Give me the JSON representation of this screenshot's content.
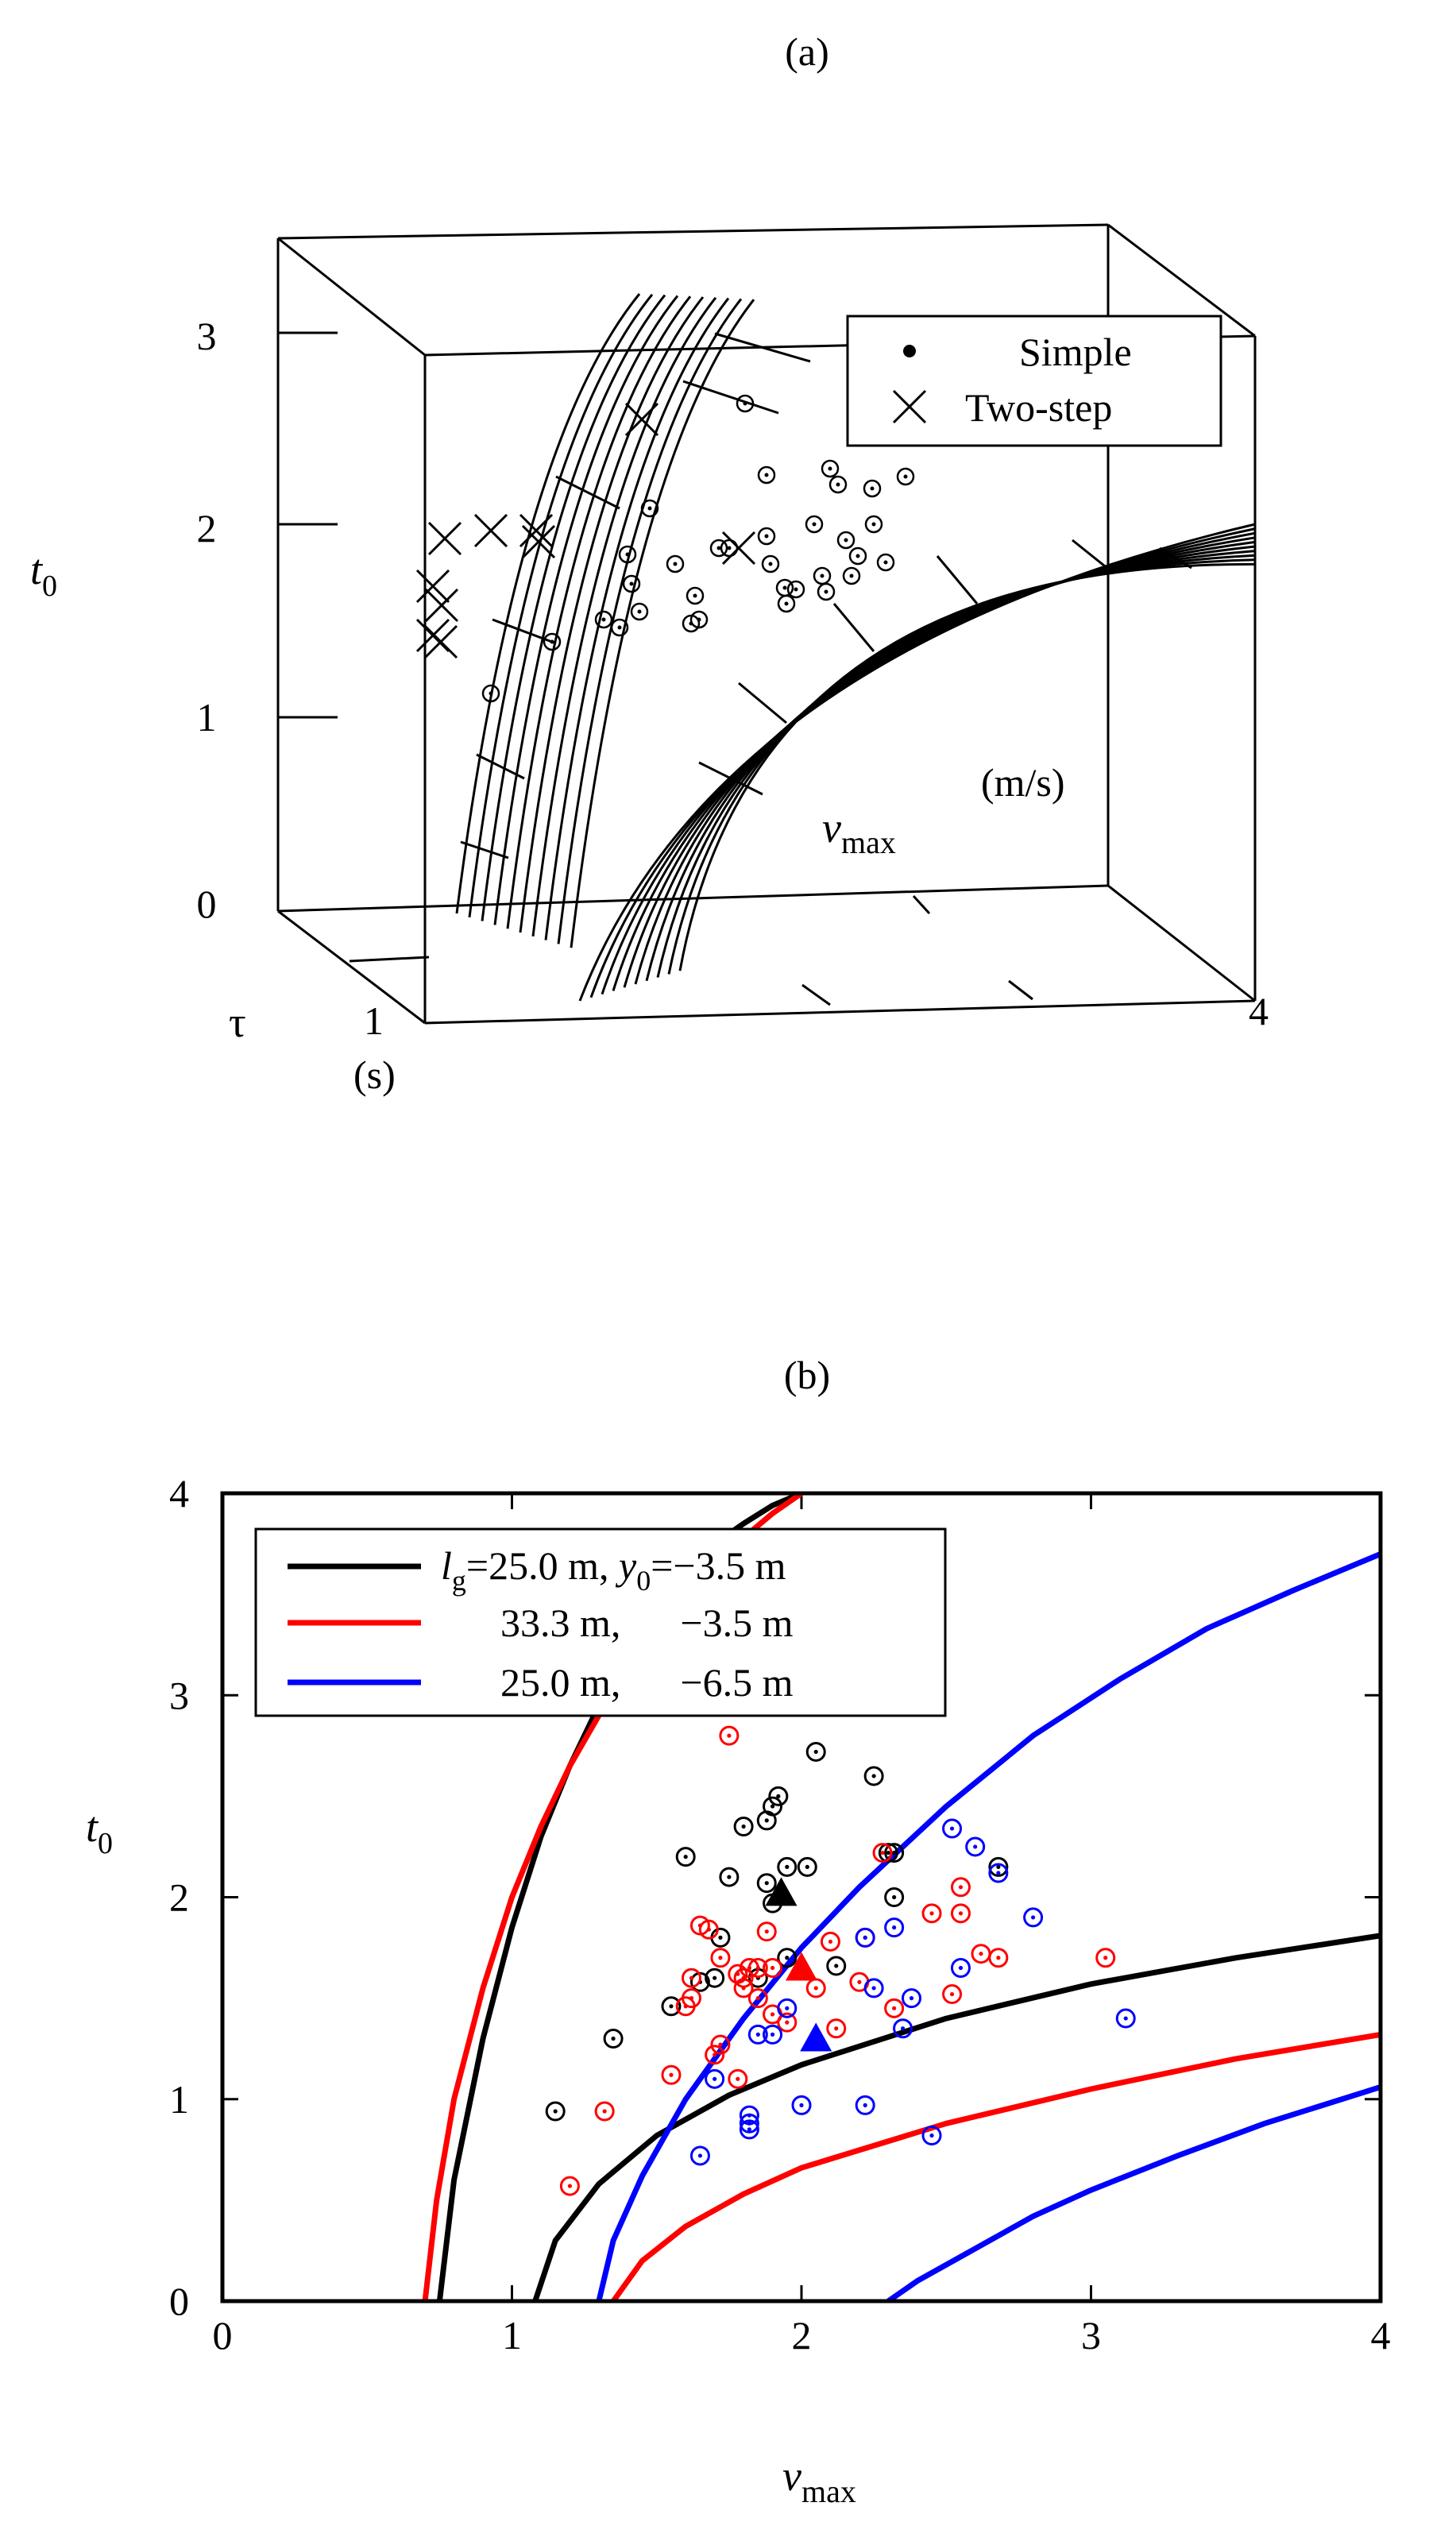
{
  "figure": {
    "panel_a_label": "(a)",
    "panel_b_label": "(b)"
  },
  "chart_data": [
    {
      "type": "scatter-3d",
      "panel": "(a)",
      "zlabel": "t",
      "zlabel_sub": "0",
      "z_ticks": [
        "0",
        "1",
        "2",
        "3"
      ],
      "tau_label": "τ",
      "tau_tick": "1",
      "tau_unit": "(s)",
      "vmax_label": "v",
      "vmax_label_sub": "max",
      "vmax_unit": "(m/s)",
      "vmax_tick": "4",
      "legend": {
        "simple": "Simple",
        "two_step": "Two-step"
      },
      "two_step_count": 10,
      "simple_count": 33,
      "surfaces": 2
    },
    {
      "type": "line+scatter",
      "panel": "(b)",
      "xlabel": "v",
      "xlabel_sub": "max",
      "ylabel": "t",
      "ylabel_sub": "0",
      "xlim": [
        0,
        4
      ],
      "ylim": [
        0,
        4
      ],
      "x_ticks": [
        "0",
        "1",
        "2",
        "3",
        "4"
      ],
      "y_ticks": [
        "0",
        "1",
        "2",
        "3",
        "4"
      ],
      "legend_entries": [
        {
          "color": "#000000",
          "l_sym": "l",
          "l_sub": "g",
          "l_text": "=25.0 m, ",
          "y_sym": "y",
          "y_sub": "0",
          "y_text": "=−3.5 m"
        },
        {
          "color": "#ff0000",
          "text": "33.3 m,      −3.5 m"
        },
        {
          "color": "#0000ff",
          "text": "25.0 m,      −6.5 m"
        }
      ],
      "series": [
        {
          "name": "black",
          "color": "#000000",
          "curves": [
            [
              [
                0.75,
                0
              ],
              [
                0.8,
                0.6
              ],
              [
                0.9,
                1.3
              ],
              [
                1.0,
                1.85
              ],
              [
                1.1,
                2.3
              ],
              [
                1.2,
                2.65
              ],
              [
                1.3,
                2.95
              ],
              [
                1.4,
                3.22
              ],
              [
                1.5,
                3.45
              ],
              [
                1.6,
                3.62
              ],
              [
                1.7,
                3.75
              ],
              [
                1.8,
                3.85
              ],
              [
                1.9,
                3.94
              ],
              [
                2.0,
                4.0
              ]
            ],
            [
              [
                1.08,
                0
              ],
              [
                1.15,
                0.3
              ],
              [
                1.3,
                0.58
              ],
              [
                1.5,
                0.82
              ],
              [
                1.75,
                1.02
              ],
              [
                2.0,
                1.17
              ],
              [
                2.5,
                1.4
              ],
              [
                3.0,
                1.57
              ],
              [
                3.5,
                1.7
              ],
              [
                4.0,
                1.81
              ]
            ]
          ],
          "points": [
            [
              1.15,
              0.94
            ],
            [
              1.35,
              1.3
            ],
            [
              1.55,
              1.46
            ],
            [
              1.65,
              1.58
            ],
            [
              1.7,
              1.6
            ],
            [
              1.72,
              1.8
            ],
            [
              1.85,
              1.6
            ],
            [
              1.95,
              1.7
            ],
            [
              1.9,
              1.97
            ],
            [
              1.88,
              2.07
            ],
            [
              1.95,
              2.15
            ],
            [
              2.02,
              2.15
            ],
            [
              1.75,
              2.1
            ],
            [
              1.6,
              2.2
            ],
            [
              1.8,
              2.35
            ],
            [
              1.88,
              2.38
            ],
            [
              1.9,
              2.45
            ],
            [
              1.92,
              2.5
            ],
            [
              2.05,
              2.72
            ],
            [
              2.25,
              2.6
            ],
            [
              2.3,
              2.22
            ],
            [
              2.32,
              2.22
            ],
            [
              2.32,
              2.0
            ],
            [
              2.68,
              2.15
            ],
            [
              2.12,
              1.66
            ]
          ],
          "mean": [
            1.93,
            2.02
          ]
        },
        {
          "name": "red",
          "color": "#ff0000",
          "curves": [
            [
              [
                0.7,
                0
              ],
              [
                0.74,
                0.5
              ],
              [
                0.8,
                1.0
              ],
              [
                0.9,
                1.55
              ],
              [
                1.0,
                2.0
              ],
              [
                1.1,
                2.35
              ],
              [
                1.2,
                2.65
              ],
              [
                1.3,
                2.9
              ],
              [
                1.45,
                3.22
              ],
              [
                1.6,
                3.5
              ],
              [
                1.75,
                3.72
              ],
              [
                1.9,
                3.9
              ],
              [
                2.0,
                4.0
              ]
            ],
            [
              [
                1.35,
                0
              ],
              [
                1.45,
                0.2
              ],
              [
                1.6,
                0.37
              ],
              [
                1.8,
                0.53
              ],
              [
                2.0,
                0.66
              ],
              [
                2.5,
                0.88
              ],
              [
                3.0,
                1.05
              ],
              [
                3.5,
                1.2
              ],
              [
                4.0,
                1.32
              ]
            ]
          ],
          "points": [
            [
              1.2,
              0.57
            ],
            [
              1.32,
              0.94
            ],
            [
              1.55,
              1.12
            ],
            [
              1.6,
              1.46
            ],
            [
              1.62,
              1.5
            ],
            [
              1.65,
              1.86
            ],
            [
              1.68,
              1.84
            ],
            [
              1.72,
              1.7
            ],
            [
              1.72,
              1.27
            ],
            [
              1.7,
              1.22
            ],
            [
              1.75,
              2.8
            ],
            [
              1.78,
              1.62
            ],
            [
              1.8,
              1.55
            ],
            [
              1.8,
              1.6
            ],
            [
              1.82,
              1.65
            ],
            [
              1.85,
              1.5
            ],
            [
              1.85,
              1.65
            ],
            [
              1.88,
              1.83
            ],
            [
              1.9,
              1.42
            ],
            [
              1.95,
              1.38
            ],
            [
              1.78,
              1.1
            ],
            [
              2.05,
              1.55
            ],
            [
              2.1,
              1.78
            ],
            [
              2.12,
              1.35
            ],
            [
              2.2,
              1.58
            ],
            [
              2.22,
              1.8
            ],
            [
              2.28,
              2.22
            ],
            [
              2.32,
              1.45
            ],
            [
              2.45,
              1.92
            ],
            [
              2.52,
              1.52
            ],
            [
              2.55,
              2.05
            ],
            [
              2.55,
              1.92
            ],
            [
              2.62,
              1.72
            ],
            [
              2.68,
              1.7
            ],
            [
              3.05,
              1.7
            ],
            [
              1.9,
              1.65
            ],
            [
              1.62,
              1.6
            ]
          ],
          "mean": [
            2.0,
            1.65
          ]
        },
        {
          "name": "blue",
          "color": "#0000ff",
          "curves": [
            [
              [
                1.3,
                0
              ],
              [
                1.35,
                0.3
              ],
              [
                1.45,
                0.62
              ],
              [
                1.6,
                1.0
              ],
              [
                1.8,
                1.4
              ],
              [
                2.0,
                1.75
              ],
              [
                2.2,
                2.05
              ],
              [
                2.5,
                2.45
              ],
              [
                2.8,
                2.8
              ],
              [
                3.1,
                3.08
              ],
              [
                3.4,
                3.33
              ],
              [
                3.7,
                3.52
              ],
              [
                4.0,
                3.7
              ]
            ],
            [
              [
                2.3,
                0
              ],
              [
                2.4,
                0.1
              ],
              [
                2.55,
                0.22
              ],
              [
                2.8,
                0.42
              ],
              [
                3.0,
                0.55
              ],
              [
                3.3,
                0.72
              ],
              [
                3.6,
                0.88
              ],
              [
                4.0,
                1.06
              ]
            ]
          ],
          "points": [
            [
              1.65,
              0.72
            ],
            [
              1.7,
              1.1
            ],
            [
              1.82,
              0.85
            ],
            [
              1.82,
              0.88
            ],
            [
              1.82,
              0.92
            ],
            [
              1.85,
              1.32
            ],
            [
              1.9,
              1.32
            ],
            [
              1.95,
              1.45
            ],
            [
              2.0,
              0.97
            ],
            [
              2.22,
              0.97
            ],
            [
              2.22,
              1.8
            ],
            [
              2.25,
              1.55
            ],
            [
              2.32,
              1.85
            ],
            [
              2.35,
              1.35
            ],
            [
              2.38,
              1.5
            ],
            [
              2.45,
              0.82
            ],
            [
              2.52,
              2.34
            ],
            [
              2.55,
              1.65
            ],
            [
              2.6,
              2.25
            ],
            [
              2.68,
              2.12
            ],
            [
              2.8,
              1.9
            ],
            [
              3.12,
              1.4
            ]
          ],
          "mean": [
            2.05,
            1.3
          ]
        }
      ]
    }
  ]
}
